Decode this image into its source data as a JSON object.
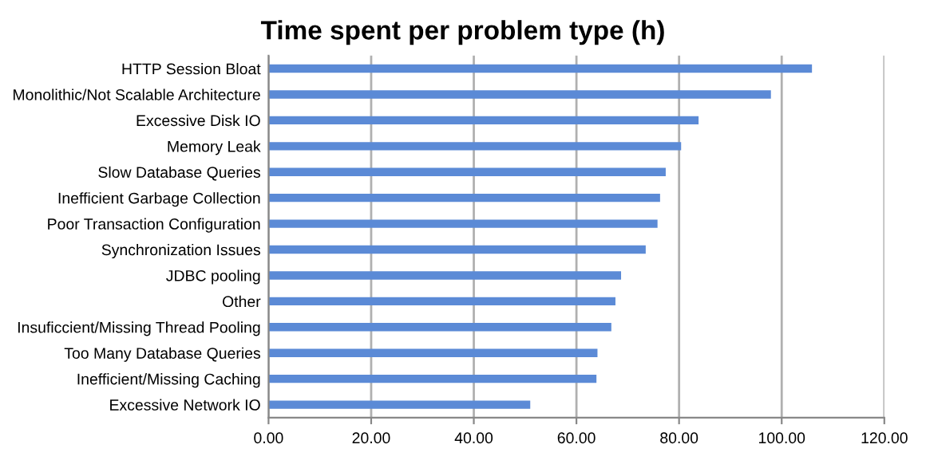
{
  "chart_data": {
    "type": "bar",
    "orientation": "horizontal",
    "title": "Time spent per problem type (h)",
    "categories": [
      "HTTP Session Bloat",
      "Monolithic/Not Scalable Architecture",
      "Excessive Disk IO",
      "Memory Leak",
      "Slow Database Queries",
      "Inefficient Garbage Collection",
      "Poor Transaction Configuration",
      "Synchronization Issues",
      "JDBC pooling",
      "Other",
      "Insuficcient/Missing Thread Pooling",
      "Too Many Database Queries",
      "Inefficient/Missing Caching",
      "Excessive Network IO"
    ],
    "values": [
      105.9,
      97.9,
      83.8,
      80.4,
      77.4,
      76.3,
      75.8,
      73.5,
      68.7,
      67.6,
      66.8,
      64.1,
      63.9,
      51.0
    ],
    "color": "#5b8ad6",
    "xlim": [
      0,
      120
    ],
    "xticks": [
      {
        "value": 0,
        "label": "0.00"
      },
      {
        "value": 20,
        "label": "20.00"
      },
      {
        "value": 40,
        "label": "40.00"
      },
      {
        "value": 60,
        "label": "60.00"
      },
      {
        "value": 80,
        "label": "80.00"
      },
      {
        "value": 100,
        "label": "100.00"
      },
      {
        "value": 120,
        "label": "120.00"
      }
    ],
    "grid": "x"
  }
}
